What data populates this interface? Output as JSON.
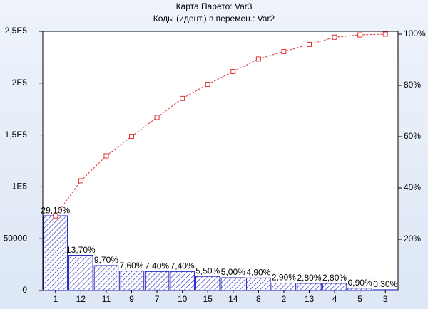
{
  "chart_data": {
    "type": "pareto",
    "title": "Карта Парето: Var3",
    "subtitle": "Коды (идент.) в перемен.: Var2",
    "categories": [
      "1",
      "12",
      "11",
      "9",
      "7",
      "10",
      "15",
      "14",
      "8",
      "2",
      "13",
      "4",
      "5",
      "3"
    ],
    "series": [
      {
        "type": "bar",
        "color": "#2020c0",
        "values": [
          72110,
          33950,
          24040,
          18830,
          18340,
          18340,
          13630,
          12390,
          12140,
          7190,
          6940,
          6940,
          2230,
          740
        ]
      },
      {
        "type": "line",
        "color": "#e03030",
        "axis": "y2",
        "values": [
          29.1,
          42.8,
          52.5,
          60.1,
          67.5,
          74.9,
          80.4,
          85.4,
          90.3,
          93.2,
          96.0,
          98.8,
          99.7,
          100.0
        ]
      }
    ],
    "shares": {
      "axis": "y2",
      "values": [
        29.1,
        13.7,
        9.7,
        7.6,
        7.4,
        7.4,
        5.5,
        5.0,
        4.9,
        2.9,
        2.8,
        2.8,
        0.9,
        0.3
      ],
      "value_labels": [
        "29,10%",
        "13,70%",
        "9,70%",
        "7,60%",
        "7,40%",
        "7,40%",
        "5,50%",
        "5,00%",
        "4,90%",
        "2,90%",
        "2,80%",
        "2,80%",
        "0,90%",
        "0,30%"
      ]
    },
    "ylim": [
      0,
      250000
    ],
    "yticks": [
      0,
      50000,
      {
        "value": 100000,
        "label": "1E5"
      },
      {
        "value": 150000,
        "label": "1,5E5"
      },
      {
        "value": 200000,
        "label": "2E5"
      },
      {
        "value": 250000,
        "label": "2,5E5"
      }
    ],
    "y2lim": [
      0,
      101.1
    ],
    "y2ticks": [
      {
        "value": 20,
        "label": "20%"
      },
      {
        "value": 40,
        "label": "40%"
      },
      {
        "value": 60,
        "label": "60%"
      },
      {
        "value": 80,
        "label": "80%"
      },
      {
        "value": 100,
        "label": "100%"
      }
    ]
  }
}
